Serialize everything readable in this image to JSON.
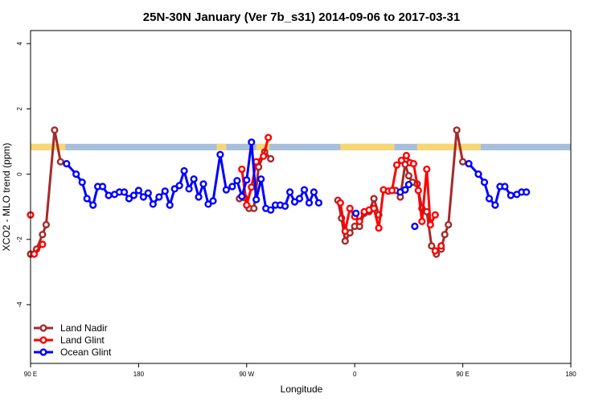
{
  "chart_data": {
    "type": "line",
    "title": "25N-30N January (Ver 7b_s31)   2014-09-06 to 2017-03-31",
    "xlabel": "Longitude",
    "ylabel": "XCO2 - MLO trend (ppm)",
    "xlim": [
      90,
      540
    ],
    "ylim": [
      -5.8,
      4.4
    ],
    "x_ticks": [
      {
        "value": 90,
        "label": "90 E"
      },
      {
        "value": 180,
        "label": "180"
      },
      {
        "value": 270,
        "label": "90 W"
      },
      {
        "value": 360,
        "label": "0"
      },
      {
        "value": 450,
        "label": "90 E"
      },
      {
        "value": 540,
        "label": "180"
      }
    ],
    "y_ticks": [
      {
        "value": 4,
        "label": "4"
      },
      {
        "value": 2,
        "label": "2"
      },
      {
        "value": 0,
        "label": "0"
      },
      {
        "value": -2,
        "label": "-2"
      },
      {
        "value": -4,
        "label": "-4"
      }
    ],
    "band": {
      "y_min": 0.73,
      "y_max": 0.93,
      "land_color": "#f7d774",
      "ocean_color": "#a7bfdc",
      "land_segments": [
        [
          90,
          119
        ],
        [
          245,
          253
        ],
        [
          278,
          289
        ],
        [
          348,
          393
        ],
        [
          412,
          465
        ]
      ]
    },
    "legend": {
      "placement": "bottom-left",
      "items": [
        {
          "name": "Land Nadir",
          "color": "#a52a2a"
        },
        {
          "name": "Land Glint",
          "color": "#ff0000"
        },
        {
          "name": "Ocean Glint",
          "color": "#0000ff"
        }
      ]
    },
    "series": [
      {
        "name": "Land Nadir",
        "color": "#a52a2a",
        "segments": [
          [
            [
              90,
              -2.45
            ],
            [
              95,
              -2.3
            ],
            [
              100,
              -1.85
            ],
            [
              103,
              -1.55
            ],
            [
              110,
              1.35
            ],
            [
              115,
              0.38
            ]
          ],
          [
            [
              264,
              -0.75
            ],
            [
              268,
              -0.72
            ],
            [
              272,
              -1.05
            ],
            [
              276,
              -1.05
            ],
            [
              280,
              0.22
            ],
            [
              285,
              0.68
            ],
            [
              290,
              0.47
            ]
          ],
          [
            [
              346,
              -0.8
            ],
            [
              349,
              -1.35
            ],
            [
              352,
              -2.05
            ],
            [
              356,
              -1.8
            ],
            [
              360,
              -1.6
            ],
            [
              364,
              -1.6
            ],
            [
              368,
              -1.2
            ],
            [
              372,
              -1.15
            ],
            [
              376,
              -0.75
            ],
            [
              380,
              -1.25
            ]
          ],
          [
            [
              394,
              -0.5
            ],
            [
              398,
              -0.7
            ],
            [
              402,
              0.3
            ],
            [
              405,
              -0.05
            ],
            [
              408,
              -0.25
            ],
            [
              412,
              -0.3
            ],
            [
              416,
              -1.05
            ],
            [
              420,
              -1.15
            ],
            [
              424,
              -2.2
            ],
            [
              428,
              -2.45
            ],
            [
              432,
              -2.3
            ],
            [
              435,
              -1.85
            ],
            [
              438,
              -1.55
            ],
            [
              445,
              1.35
            ],
            [
              450,
              0.38
            ]
          ]
        ]
      },
      {
        "name": "Land Glint",
        "color": "#ff0000",
        "segments": [
          [
            [
              90,
              -1.25
            ]
          ],
          [
            [
              93,
              -2.45
            ],
            [
              100,
              -2.15
            ]
          ],
          [
            [
              266,
              0.15
            ],
            [
              270,
              -0.95
            ],
            [
              274,
              -0.4
            ],
            [
              278,
              0.38
            ],
            [
              284,
              0.55
            ],
            [
              288,
              1.12
            ]
          ],
          [
            [
              348,
              -0.88
            ],
            [
              352,
              -1.75
            ],
            [
              356,
              -1.05
            ],
            [
              360,
              -1.3
            ],
            [
              364,
              -1.45
            ],
            [
              368,
              -1.15
            ],
            [
              372,
              -1.1
            ],
            [
              376,
              -1.05
            ],
            [
              380,
              -1.65
            ],
            [
              384,
              -0.48
            ],
            [
              388,
              -0.52
            ],
            [
              391,
              -0.5
            ],
            [
              395,
              0.28
            ],
            [
              399,
              0.42
            ],
            [
              403,
              0.57
            ],
            [
              406,
              0.35
            ],
            [
              409,
              0.32
            ],
            [
              413,
              -0.5
            ],
            [
              416,
              -1.45
            ],
            [
              420,
              0.15
            ],
            [
              423,
              -1.55
            ],
            [
              427,
              -1.25
            ]
          ],
          [
            [
              427,
              -2.35
            ],
            [
              432,
              -2.2
            ]
          ]
        ]
      },
      {
        "name": "Ocean Glint",
        "color": "#0000ff",
        "segments": [
          [
            [
              120,
              0.32
            ],
            [
              128,
              0.0
            ],
            [
              133,
              -0.25
            ],
            [
              137,
              -0.75
            ],
            [
              142,
              -0.95
            ],
            [
              146,
              -0.38
            ],
            [
              150,
              -0.38
            ],
            [
              155,
              -0.65
            ],
            [
              160,
              -0.62
            ],
            [
              164,
              -0.55
            ],
            [
              168,
              -0.55
            ],
            [
              172,
              -0.75
            ],
            [
              176,
              -0.65
            ],
            [
              180,
              -0.5
            ],
            [
              184,
              -0.7
            ],
            [
              188,
              -0.58
            ],
            [
              192,
              -0.92
            ],
            [
              197,
              -0.7
            ],
            [
              202,
              -0.52
            ],
            [
              206,
              -0.95
            ],
            [
              210,
              -0.45
            ],
            [
              214,
              -0.35
            ],
            [
              218,
              0.1
            ],
            [
              222,
              -0.45
            ],
            [
              226,
              -0.15
            ],
            [
              230,
              -0.7
            ],
            [
              234,
              -0.3
            ],
            [
              238,
              -0.92
            ],
            [
              242,
              -0.82
            ],
            [
              248,
              0.6
            ],
            [
              253,
              -0.48
            ],
            [
              258,
              -0.38
            ],
            [
              262,
              -0.2
            ],
            [
              266,
              -0.68
            ],
            [
              270,
              -0.18
            ],
            [
              274,
              0.98
            ],
            [
              278,
              -0.78
            ],
            [
              282,
              -0.15
            ],
            [
              286,
              -1.05
            ],
            [
              290,
              -1.1
            ],
            [
              294,
              -0.95
            ],
            [
              298,
              -0.95
            ],
            [
              302,
              -0.98
            ],
            [
              306,
              -0.55
            ],
            [
              310,
              -0.85
            ],
            [
              314,
              -0.75
            ],
            [
              318,
              -0.48
            ],
            [
              322,
              -0.88
            ],
            [
              326,
              -0.55
            ],
            [
              330,
              -0.88
            ]
          ],
          [
            [
              361,
              -1.2
            ]
          ],
          [
            [
              398,
              -0.55
            ],
            [
              402,
              -0.48
            ],
            [
              405,
              -0.32
            ]
          ],
          [
            [
              410,
              -1.6
            ]
          ],
          [
            [
              455,
              0.32
            ],
            [
              463,
              0.0
            ],
            [
              468,
              -0.25
            ],
            [
              472,
              -0.75
            ],
            [
              477,
              -0.95
            ],
            [
              481,
              -0.38
            ],
            [
              485,
              -0.38
            ],
            [
              490,
              -0.65
            ],
            [
              495,
              -0.62
            ],
            [
              499,
              -0.55
            ],
            [
              503,
              -0.55
            ]
          ]
        ]
      }
    ]
  }
}
